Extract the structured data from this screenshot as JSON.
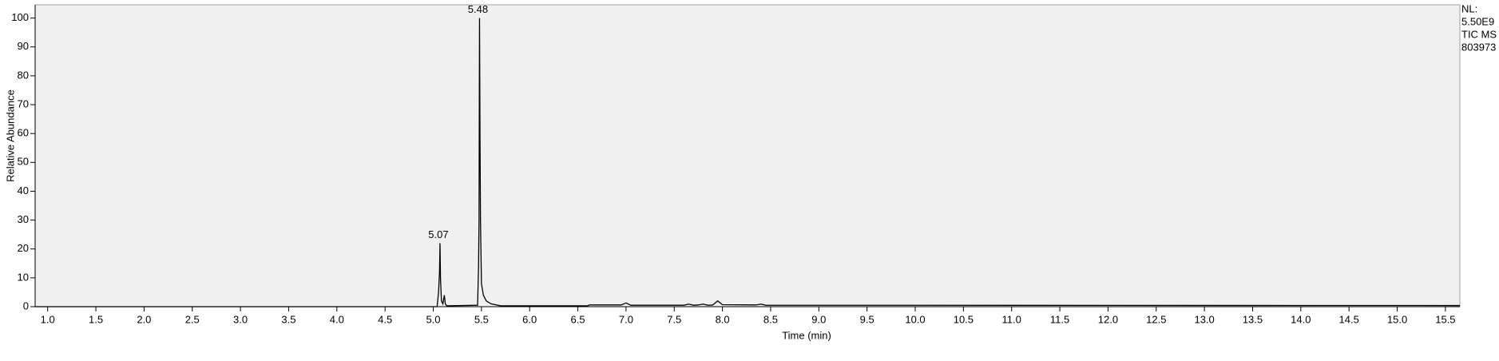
{
  "chart_data": {
    "type": "line",
    "x_label": "Time (min)",
    "y_label": "Relative Abundance",
    "x": [
      0.87,
      5.04,
      5.055,
      5.065,
      5.07,
      5.075,
      5.085,
      5.1,
      5.115,
      5.125,
      5.14,
      5.46,
      5.47,
      5.475,
      5.48,
      5.485,
      5.49,
      5.5,
      5.52,
      5.55,
      5.6,
      5.7,
      6.6,
      6.62,
      6.95,
      7.0,
      7.05,
      7.6,
      7.65,
      7.7,
      7.75,
      7.8,
      7.85,
      7.9,
      7.95,
      8.0,
      8.35,
      8.4,
      8.45,
      15.65
    ],
    "series": [
      {
        "color": "#000000",
        "values": [
          0,
          0,
          5,
          12,
          22,
          10,
          2,
          1,
          4,
          1,
          0.3,
          0.5,
          14,
          30,
          100,
          60,
          30,
          8,
          4,
          2,
          1,
          0.3,
          0.3,
          0.6,
          0.6,
          1.3,
          0.5,
          0.5,
          0.9,
          0.5,
          0.6,
          0.9,
          0.5,
          0.6,
          2,
          0.7,
          0.6,
          0.9,
          0.5,
          0.4
        ]
      }
    ],
    "annotations": [
      {
        "text": "5.07",
        "x": 5.07,
        "y": 22
      },
      {
        "text": "5.48",
        "x": 5.48,
        "y": 100
      }
    ],
    "side_labels": [
      "NL:",
      "5.50E9",
      "TIC MS",
      "803973"
    ],
    "xlim": [
      0.87,
      15.65
    ],
    "ylim": [
      0,
      104.6
    ],
    "xticks": [
      {
        "value": 1.0,
        "label": "1.0"
      },
      {
        "value": 1.5,
        "label": "1.5"
      },
      {
        "value": 2.0,
        "label": "2.0"
      },
      {
        "value": 2.5,
        "label": "2.5"
      },
      {
        "value": 3.0,
        "label": "3.0"
      },
      {
        "value": 3.5,
        "label": "3.5"
      },
      {
        "value": 4.0,
        "label": "4.0"
      },
      {
        "value": 4.5,
        "label": "4.5"
      },
      {
        "value": 5.0,
        "label": "5.0"
      },
      {
        "value": 5.5,
        "label": "5.5"
      },
      {
        "value": 6.0,
        "label": "6.0"
      },
      {
        "value": 6.5,
        "label": "6.5"
      },
      {
        "value": 7.0,
        "label": "7.0"
      },
      {
        "value": 7.5,
        "label": "7.5"
      },
      {
        "value": 8.0,
        "label": "8.0"
      },
      {
        "value": 8.5,
        "label": "8.5"
      },
      {
        "value": 9.0,
        "label": "9.0"
      },
      {
        "value": 9.5,
        "label": "9.5"
      },
      {
        "value": 10.0,
        "label": "10.0"
      },
      {
        "value": 10.5,
        "label": "10.5"
      },
      {
        "value": 11.0,
        "label": "11.0"
      },
      {
        "value": 11.5,
        "label": "11.5"
      },
      {
        "value": 12.0,
        "label": "12.0"
      },
      {
        "value": 12.5,
        "label": "12.5"
      },
      {
        "value": 13.0,
        "label": "13.0"
      },
      {
        "value": 13.5,
        "label": "13.5"
      },
      {
        "value": 14.0,
        "label": "14.0"
      },
      {
        "value": 14.5,
        "label": "14.5"
      },
      {
        "value": 15.0,
        "label": "15.0"
      },
      {
        "value": 15.5,
        "label": "15.5"
      }
    ],
    "yticks": [
      0,
      10,
      20,
      30,
      40,
      50,
      60,
      70,
      80,
      90,
      100
    ],
    "background": "#f0f0f0"
  }
}
